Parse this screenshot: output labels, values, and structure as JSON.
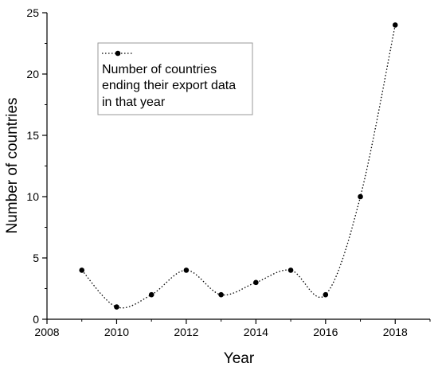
{
  "chart_data": {
    "type": "line",
    "xlabel": "Year",
    "ylabel": "Number of countries",
    "xlim": [
      2008,
      2019
    ],
    "ylim": [
      0,
      25
    ],
    "x_ticks": [
      2008,
      2010,
      2012,
      2014,
      2016,
      2018
    ],
    "y_ticks": [
      0,
      5,
      10,
      15,
      20,
      25
    ],
    "grid": false,
    "legend_position": "top-left",
    "line_style": "dotted smooth curve",
    "series": [
      {
        "name": "Number of countries ending their export data in that year",
        "legend_lines": [
          "Number of countries",
          "ending their export data",
          "in that year"
        ],
        "color": "#000000",
        "x": [
          2009,
          2010,
          2011,
          2012,
          2013,
          2014,
          2015,
          2016,
          2017,
          2018
        ],
        "y": [
          4,
          1,
          2,
          4,
          2,
          3,
          4,
          2,
          10,
          24
        ]
      }
    ]
  }
}
